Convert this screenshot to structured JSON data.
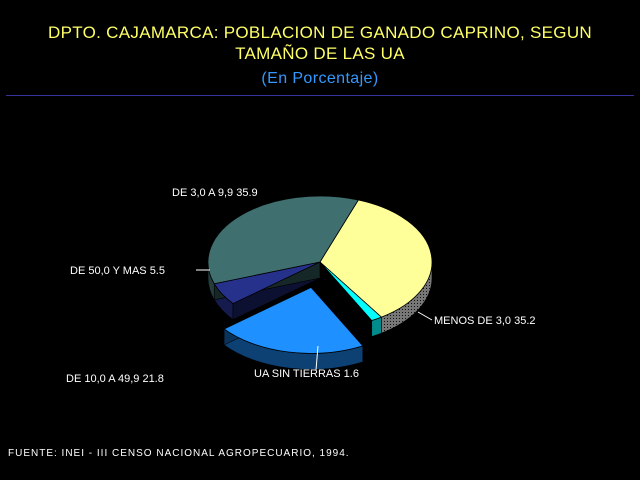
{
  "header": {
    "title_line1": "DPTO. CAJAMARCA: POBLACION DE GANADO CAPRINO, SEGUN",
    "title_line2": "TAMAÑO DE LAS UA",
    "subtitle": "(En Porcentaje)"
  },
  "footer": {
    "source": "FUENTE: INEI - III CENSO NACIONAL AGROPECUARIO, 1994."
  },
  "chart_data": {
    "type": "pie",
    "title": "DPTO. CAJAMARCA: POBLACION DE GANADO CAPRINO, SEGUN TAMAÑO DE LAS UA",
    "subtitle": "(En Porcentaje)",
    "three_d": true,
    "exploded": "DE 10,0 A 49,9",
    "slices": [
      {
        "label": "MENOS DE 3,0",
        "value": 35.2,
        "color": "#FFFF99"
      },
      {
        "label": "UA SIN TIERRAS",
        "value": 1.6,
        "color": "#00FFFF"
      },
      {
        "label": "DE 10,0 A 49,9",
        "value": 21.8,
        "color": "#1E90FF"
      },
      {
        "label": "DE 50,0 Y MAS",
        "value": 5.5,
        "color": "#26318C"
      },
      {
        "label": "DE 3,0 A 9,9",
        "value": 35.9,
        "color": "#3F6F6F"
      }
    ]
  }
}
